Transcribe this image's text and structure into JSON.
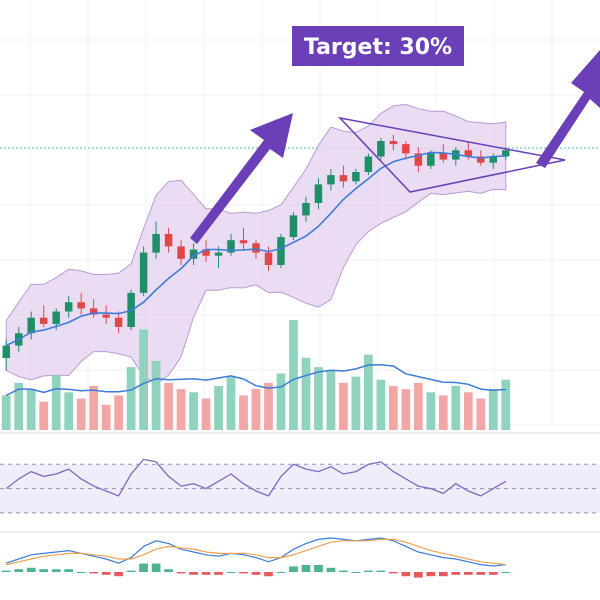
{
  "annotation": {
    "target_text": "Target: 30%",
    "badge_color": "#6a3fb8",
    "arrow_color": "#6a3fb8",
    "band_fill": "#e7d6f0",
    "band_edge": "#b08ad0"
  },
  "chart_data": {
    "type": "candlestick",
    "title": "",
    "xlabel": "",
    "ylabel": "",
    "ylim": [
      0,
      100
    ],
    "colors": {
      "up": "#1f8f6a",
      "down": "#e04848",
      "ma": "#3b7dd8",
      "rsi": "#7a6cc0",
      "macd": "#3b7dd8",
      "signal": "#f0a050"
    },
    "candles": [
      {
        "t": 0,
        "o": 20,
        "h": 26,
        "l": 16,
        "c": 24
      },
      {
        "t": 1,
        "o": 24,
        "h": 30,
        "l": 22,
        "c": 28
      },
      {
        "t": 2,
        "o": 28,
        "h": 35,
        "l": 26,
        "c": 33
      },
      {
        "t": 3,
        "o": 33,
        "h": 37,
        "l": 30,
        "c": 31
      },
      {
        "t": 4,
        "o": 31,
        "h": 36,
        "l": 29,
        "c": 35
      },
      {
        "t": 5,
        "o": 35,
        "h": 40,
        "l": 33,
        "c": 38
      },
      {
        "t": 6,
        "o": 38,
        "h": 41,
        "l": 34,
        "c": 36
      },
      {
        "t": 7,
        "o": 36,
        "h": 39,
        "l": 33,
        "c": 34
      },
      {
        "t": 8,
        "o": 34,
        "h": 37,
        "l": 31,
        "c": 33
      },
      {
        "t": 9,
        "o": 33,
        "h": 35,
        "l": 28,
        "c": 30
      },
      {
        "t": 10,
        "o": 30,
        "h": 42,
        "l": 29,
        "c": 41
      },
      {
        "t": 11,
        "o": 41,
        "h": 56,
        "l": 40,
        "c": 54
      },
      {
        "t": 12,
        "o": 54,
        "h": 64,
        "l": 52,
        "c": 60
      },
      {
        "t": 13,
        "o": 60,
        "h": 62,
        "l": 54,
        "c": 56
      },
      {
        "t": 14,
        "o": 56,
        "h": 58,
        "l": 50,
        "c": 52
      },
      {
        "t": 15,
        "o": 52,
        "h": 57,
        "l": 50,
        "c": 55
      },
      {
        "t": 16,
        "o": 55,
        "h": 58,
        "l": 51,
        "c": 53
      },
      {
        "t": 17,
        "o": 53,
        "h": 56,
        "l": 49,
        "c": 54
      },
      {
        "t": 18,
        "o": 54,
        "h": 60,
        "l": 53,
        "c": 58
      },
      {
        "t": 19,
        "o": 58,
        "h": 62,
        "l": 55,
        "c": 57
      },
      {
        "t": 20,
        "o": 57,
        "h": 58,
        "l": 52,
        "c": 54
      },
      {
        "t": 21,
        "o": 54,
        "h": 56,
        "l": 48,
        "c": 50
      },
      {
        "t": 22,
        "o": 50,
        "h": 60,
        "l": 49,
        "c": 59
      },
      {
        "t": 23,
        "o": 59,
        "h": 67,
        "l": 58,
        "c": 66
      },
      {
        "t": 24,
        "o": 66,
        "h": 72,
        "l": 64,
        "c": 70
      },
      {
        "t": 25,
        "o": 70,
        "h": 78,
        "l": 68,
        "c": 76
      },
      {
        "t": 26,
        "o": 76,
        "h": 81,
        "l": 74,
        "c": 79
      },
      {
        "t": 27,
        "o": 79,
        "h": 82,
        "l": 75,
        "c": 77
      },
      {
        "t": 28,
        "o": 77,
        "h": 81,
        "l": 76,
        "c": 80
      },
      {
        "t": 29,
        "o": 80,
        "h": 86,
        "l": 79,
        "c": 85
      },
      {
        "t": 30,
        "o": 85,
        "h": 91,
        "l": 84,
        "c": 90
      },
      {
        "t": 31,
        "o": 90,
        "h": 92,
        "l": 87,
        "c": 89
      },
      {
        "t": 32,
        "o": 89,
        "h": 90,
        "l": 84,
        "c": 86
      },
      {
        "t": 33,
        "o": 86,
        "h": 88,
        "l": 80,
        "c": 82
      },
      {
        "t": 34,
        "o": 82,
        "h": 87,
        "l": 81,
        "c": 86
      },
      {
        "t": 35,
        "o": 86,
        "h": 89,
        "l": 83,
        "c": 84
      },
      {
        "t": 36,
        "o": 84,
        "h": 88,
        "l": 82,
        "c": 87
      },
      {
        "t": 37,
        "o": 87,
        "h": 90,
        "l": 84,
        "c": 85
      },
      {
        "t": 38,
        "o": 85,
        "h": 87,
        "l": 82,
        "c": 83
      },
      {
        "t": 39,
        "o": 83,
        "h": 86,
        "l": 81,
        "c": 85
      },
      {
        "t": 40,
        "o": 85,
        "h": 88,
        "l": 84,
        "c": 87
      }
    ],
    "volume": [
      22,
      30,
      26,
      18,
      35,
      24,
      20,
      28,
      16,
      22,
      40,
      64,
      44,
      30,
      26,
      24,
      20,
      28,
      34,
      22,
      26,
      30,
      36,
      70,
      46,
      40,
      38,
      30,
      34,
      48,
      32,
      28,
      26,
      30,
      24,
      22,
      28,
      24,
      20,
      26,
      32
    ],
    "rsi": [
      50,
      58,
      64,
      60,
      62,
      66,
      58,
      52,
      48,
      44,
      62,
      74,
      72,
      60,
      52,
      54,
      50,
      56,
      62,
      54,
      48,
      44,
      60,
      70,
      66,
      64,
      68,
      62,
      64,
      70,
      72,
      64,
      58,
      52,
      50,
      46,
      54,
      48,
      44,
      50,
      56
    ],
    "macd": [
      0.2,
      0.5,
      0.8,
      0.9,
      1.0,
      1.1,
      0.9,
      0.7,
      0.5,
      0.2,
      0.6,
      1.4,
      1.8,
      1.6,
      1.2,
      1.0,
      0.8,
      0.7,
      0.9,
      0.8,
      0.6,
      0.3,
      0.6,
      1.2,
      1.6,
      1.9,
      2.0,
      1.9,
      1.8,
      1.9,
      2.0,
      1.8,
      1.4,
      1.0,
      0.8,
      0.6,
      0.5,
      0.3,
      0.1,
      0.0,
      0.1
    ],
    "signal": [
      0.1,
      0.3,
      0.5,
      0.7,
      0.8,
      0.9,
      0.9,
      0.8,
      0.7,
      0.5,
      0.5,
      0.8,
      1.2,
      1.4,
      1.3,
      1.2,
      1.0,
      0.9,
      0.9,
      0.9,
      0.8,
      0.6,
      0.6,
      0.8,
      1.1,
      1.4,
      1.7,
      1.8,
      1.8,
      1.8,
      1.9,
      1.9,
      1.7,
      1.4,
      1.1,
      0.9,
      0.7,
      0.5,
      0.3,
      0.2,
      0.1
    ],
    "hist": [
      0.1,
      0.2,
      0.3,
      0.2,
      0.2,
      0.2,
      0.0,
      -0.1,
      -0.2,
      -0.3,
      0.1,
      0.6,
      0.6,
      0.2,
      -0.1,
      -0.2,
      -0.2,
      -0.2,
      0.0,
      -0.1,
      -0.2,
      -0.3,
      0.0,
      0.4,
      0.5,
      0.5,
      0.3,
      0.1,
      0.0,
      0.1,
      0.1,
      -0.1,
      -0.3,
      -0.4,
      -0.3,
      -0.3,
      -0.2,
      -0.2,
      -0.2,
      -0.2,
      0.0
    ]
  }
}
